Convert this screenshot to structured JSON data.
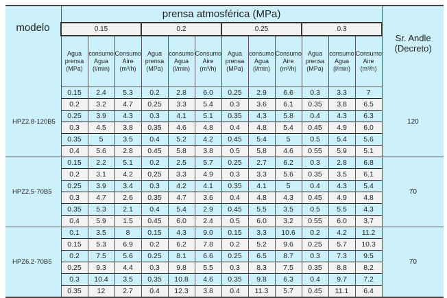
{
  "table": {
    "title": "prensa atmosférica (MPa)",
    "model_header": "modelo",
    "andle_header_line1": "Sr. Andle",
    "andle_header_line2": "(Decreto)",
    "pressure_groups": [
      "0.15",
      "0.2",
      "0.25",
      "0.3"
    ],
    "sub_headers": [
      {
        "l1": "Agua",
        "l2": "prensa",
        "l3": "(MPa)"
      },
      {
        "l1": "consumo",
        "l2": "Agua",
        "l3": "(l/min)"
      },
      {
        "l1": "Consumo",
        "l2": "Aire",
        "l3": "(m³/h)"
      }
    ],
    "models": [
      {
        "name": "HPZ2.8-120B5",
        "andle": "120",
        "rows": [
          [
            "0.15",
            "2.4",
            "5.3",
            "0.2",
            "2.8",
            "6.0",
            "0.25",
            "2.9",
            "6.6",
            "0.3",
            "3.3",
            "7"
          ],
          [
            "0.2",
            "3.2",
            "4.7",
            "0.25",
            "3.3",
            "5.4",
            "0.3",
            "3.6",
            "6.1",
            "0.35",
            "3.8",
            "6.5"
          ],
          [
            "0.25",
            "3.9",
            "4.3",
            "0.3",
            "4.1",
            "5.1",
            "0.35",
            "4.3",
            "5.8",
            "0.4",
            "4.3",
            "6.3"
          ],
          [
            "0.3",
            "4.5",
            "3.8",
            "0.35",
            "4.6",
            "4.8",
            "0.4",
            "4.8",
            "5.4",
            "0.45",
            "4.9",
            "6.0"
          ],
          [
            "0.35",
            "5",
            "3.5",
            "0.4",
            "5.2",
            "4.2",
            "0.45",
            "5.4",
            "5",
            "0.5",
            "5.4",
            "5.6"
          ],
          [
            "0.4",
            "5.6",
            "2.8",
            "0.45",
            "5.8",
            "3.8",
            "0.5",
            "5.8",
            "4.6",
            "0.55",
            "5.9",
            "5.1"
          ]
        ]
      },
      {
        "name": "HPZ2.5-70B5",
        "andle": "70",
        "rows": [
          [
            "0.15",
            "2.2",
            "5.1",
            "0.2",
            "2.5",
            "5.7",
            "0.25",
            "2.7",
            "6.2",
            "0.3",
            "2.8",
            "6.8"
          ],
          [
            "0.2",
            "3.1",
            "4.2",
            "0.25",
            "3.3",
            "4.9",
            "0.3",
            "3.3",
            "5.6",
            "0.35",
            "3.5",
            "6.1"
          ],
          [
            "0.25",
            "3.9",
            "3.4",
            "0.3",
            "4.2",
            "4.1",
            "0.35",
            "4.1",
            "5",
            "0.4",
            "4.3",
            "5.4"
          ],
          [
            "0.3",
            "4.7",
            "2.6",
            "0.35",
            "4.7",
            "3.6",
            "0.4",
            "4.8",
            "4.3",
            "0.45",
            "4.9",
            "4.8"
          ],
          [
            "0.35",
            "5.3",
            "2.1",
            "0.4",
            "5.4",
            "2.9",
            "0.45",
            "5.5",
            "3.5",
            "0.5",
            "5.5",
            "4.3"
          ],
          [
            "0.4",
            "5.9",
            "1.5",
            "0.45",
            "6.0",
            "2.4",
            "0.5",
            "6.0",
            "3.2",
            "0.55",
            "6.0",
            "3.7"
          ]
        ]
      },
      {
        "name": "HPZ6.2-70B5",
        "andle": "70",
        "rows": [
          [
            "0.1",
            "3.5",
            "8",
            "0.15",
            "4.3",
            "9.0",
            "0.15",
            "3.3",
            "10.6",
            "0.2",
            "4.2",
            "11.2"
          ],
          [
            "0.15",
            "5.3",
            "6.9",
            "0.2",
            "6.2",
            "7.8",
            "0.2",
            "5.2",
            "9.6",
            "0.25",
            "5.7",
            "10.3"
          ],
          [
            "0.2",
            "7.5",
            "5.6",
            "0.25",
            "8.1",
            "6.6",
            "0.25",
            "6.5",
            "8.7",
            "0.3",
            "7.3",
            "9.5"
          ],
          [
            "0.25",
            "9.3",
            "4.4",
            "0.3",
            "9.8",
            "5.5",
            "0.3",
            "8.3",
            "7.5",
            "0.35",
            "8.8",
            "8.2"
          ],
          [
            "0.3",
            "10.4",
            "3.5",
            "0.35",
            "10.8",
            "4.6",
            "0.35",
            "9.8",
            "6.3",
            "0.4",
            "9.7",
            "7.2"
          ],
          [
            "0.35",
            "12",
            "2.7",
            "0.4",
            "12.3",
            "3.8",
            "0.4",
            "11.3",
            "5.7",
            "0.45",
            "11.1",
            "6.4"
          ]
        ]
      }
    ]
  }
}
